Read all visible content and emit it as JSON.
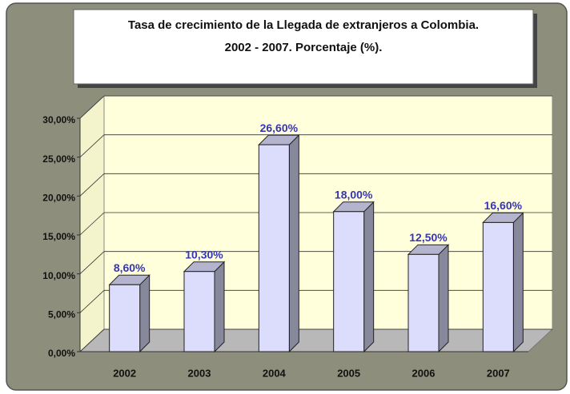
{
  "chart_data": {
    "type": "bar3d",
    "title": "Tasa de crecimiento de la Llegada de extranjeros a Colombia.",
    "subtitle": "2002 - 2007. Porcentaje (%).",
    "categories": [
      "2002",
      "2003",
      "2004",
      "2005",
      "2006",
      "2007"
    ],
    "values": [
      8.6,
      10.3,
      26.6,
      18,
      12.5,
      16.6
    ],
    "value_labels": [
      "8,60%",
      "10,30%",
      "26,60%",
      "18,00%",
      "12,50%",
      "16,60%"
    ],
    "color": "#dcdcfc",
    "ylim": [
      0,
      30
    ],
    "yticks": [
      {
        "value": 0,
        "label": "0,00%"
      },
      {
        "value": 5,
        "label": "5,00%"
      },
      {
        "value": 10,
        "label": "10,00%"
      },
      {
        "value": 15,
        "label": "15,00%"
      },
      {
        "value": 20,
        "label": "20,00%"
      },
      {
        "value": 25,
        "label": "25,00%"
      },
      {
        "value": 30,
        "label": "30,00%"
      }
    ],
    "grid": true
  }
}
